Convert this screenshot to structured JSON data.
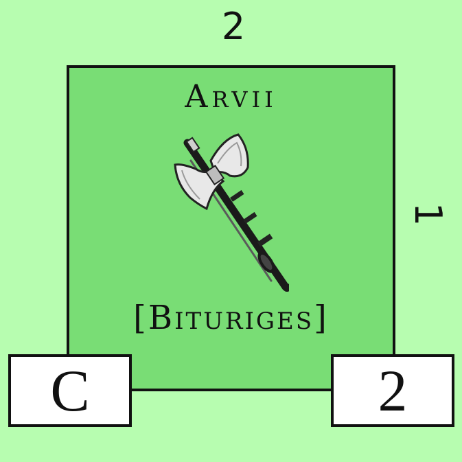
{
  "counter": {
    "title": "Arvii",
    "subtitle": "[Bituriges]",
    "icon": "double-axe-icon",
    "background_color": "#79dd75"
  },
  "edges": {
    "top": "2",
    "right": "1"
  },
  "boxes": {
    "left": "C",
    "right": "2"
  },
  "colors": {
    "page_background": "#b7fdb0",
    "counter_background": "#79dd75",
    "border": "#111111",
    "box_background": "#ffffff"
  }
}
